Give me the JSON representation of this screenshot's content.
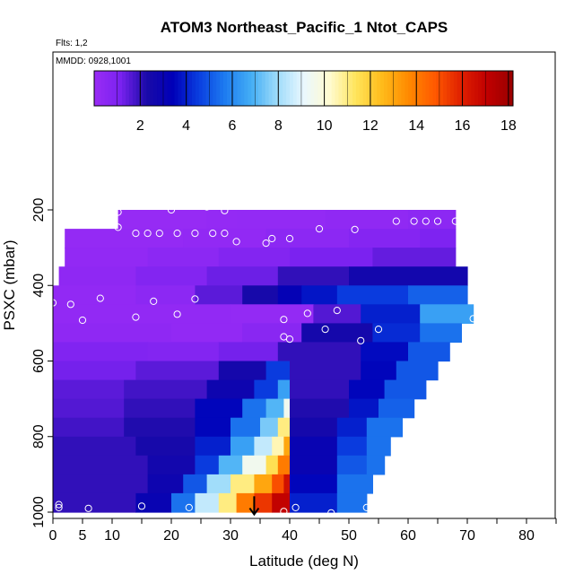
{
  "chart_data": {
    "type": "heatmap",
    "title": "ATOM3 Northeast_Pacific_1 Ntot_CAPS",
    "annotations": [
      "Flts: 1,2",
      "MMDD: 0928,1001"
    ],
    "xlabel": "Latitude (deg N)",
    "ylabel": "PSXC (mbar)",
    "xlim": [
      0,
      85
    ],
    "ylim": [
      1000,
      40
    ],
    "y_reversed": true,
    "grid": false,
    "x_ticks": [
      0,
      5,
      10,
      20,
      30,
      40,
      50,
      60,
      70,
      80
    ],
    "x_tick_labels": [
      "0",
      "5",
      "10",
      "20",
      "30",
      "40",
      "50",
      "60",
      "70",
      "80"
    ],
    "x_minor_ticks": [
      0,
      5,
      10,
      15,
      20,
      25,
      30,
      35,
      40,
      45,
      50,
      55,
      60,
      65,
      70,
      75,
      80,
      85
    ],
    "y_ticks": [
      200,
      400,
      600,
      800,
      1000
    ],
    "y_tick_labels": [
      "200",
      "400",
      "600",
      "800",
      "1000"
    ],
    "colorbar": {
      "orientation": "horizontal",
      "placement": "top",
      "min": 0,
      "max": 18.2,
      "ticks": [
        2,
        4,
        6,
        8,
        10,
        12,
        14,
        16,
        18
      ],
      "tick_labels": [
        "2",
        "4",
        "6",
        "8",
        "10",
        "12",
        "14",
        "16",
        "18"
      ],
      "colors": [
        "#9a2cf5",
        "#7a22f0",
        "#1a0aa8",
        "#0000b8",
        "#0a3ee0",
        "#1e7cf0",
        "#44aef5",
        "#9fdcfa",
        "#eaf8ff",
        "#fffbd0",
        "#ffe45a",
        "#ffbb1a",
        "#ff8a00",
        "#ff5a00",
        "#e02000",
        "#c00000",
        "#990000"
      ]
    },
    "pressure_bands": [
      {
        "p": [
          200,
          250
        ],
        "segments": [
          [
            11,
            26,
            0.15
          ],
          [
            26,
            31,
            0.2
          ],
          [
            31,
            46,
            0.25
          ],
          [
            46,
            60,
            0.35
          ],
          [
            60,
            68,
            0.5
          ]
        ]
      },
      {
        "p": [
          250,
          300
        ],
        "segments": [
          [
            2,
            22,
            0.2
          ],
          [
            22,
            36,
            0.3
          ],
          [
            36,
            50,
            0.5
          ],
          [
            50,
            62,
            0.75
          ],
          [
            62,
            68,
            1.0
          ]
        ]
      },
      {
        "p": [
          300,
          350
        ],
        "segments": [
          [
            2,
            16,
            0.3
          ],
          [
            16,
            28,
            0.5
          ],
          [
            28,
            40,
            0.8
          ],
          [
            40,
            54,
            1.1
          ],
          [
            54,
            68,
            1.4
          ]
        ]
      },
      {
        "p": [
          350,
          400
        ],
        "segments": [
          [
            1,
            14,
            0.4
          ],
          [
            14,
            26,
            0.8
          ],
          [
            26,
            38,
            1.3
          ],
          [
            38,
            50,
            2.0
          ],
          [
            50,
            70,
            2.6
          ]
        ]
      },
      {
        "p": [
          400,
          450
        ],
        "segments": [
          [
            0,
            14,
            0.3
          ],
          [
            14,
            24,
            0.5
          ],
          [
            24,
            32,
            1.5
          ],
          [
            32,
            38,
            2.4
          ],
          [
            38,
            42,
            3.2
          ],
          [
            42,
            48,
            3.8
          ],
          [
            48,
            60,
            4.5
          ],
          [
            60,
            70,
            5.2
          ]
        ]
      },
      {
        "p": [
          450,
          500
        ],
        "segments": [
          [
            0,
            30,
            0.3
          ],
          [
            30,
            44,
            0.25
          ],
          [
            44,
            52,
            1.6
          ],
          [
            52,
            62,
            4.0
          ],
          [
            62,
            71,
            6.5
          ]
        ]
      },
      {
        "p": [
          500,
          550
        ],
        "segments": [
          [
            0,
            20,
            0.4
          ],
          [
            20,
            32,
            0.3
          ],
          [
            32,
            42,
            0.6
          ],
          [
            42,
            54,
            2.5
          ],
          [
            54,
            62,
            4.2
          ],
          [
            62,
            69,
            5.5
          ]
        ]
      },
      {
        "p": [
          550,
          600
        ],
        "segments": [
          [
            0,
            16,
            0.9
          ],
          [
            16,
            28,
            0.8
          ],
          [
            28,
            38,
            1.2
          ],
          [
            38,
            52,
            2.0
          ],
          [
            52,
            60,
            3.6
          ],
          [
            60,
            67,
            5.0
          ]
        ]
      },
      {
        "p": [
          600,
          650
        ],
        "segments": [
          [
            0,
            14,
            1.2
          ],
          [
            14,
            28,
            1.5
          ],
          [
            28,
            36,
            2.5
          ],
          [
            36,
            40,
            4.5
          ],
          [
            40,
            52,
            2.0
          ],
          [
            52,
            58,
            3.5
          ],
          [
            58,
            65,
            5.0
          ]
        ]
      },
      {
        "p": [
          650,
          700
        ],
        "segments": [
          [
            0,
            12,
            1.5
          ],
          [
            12,
            26,
            1.8
          ],
          [
            26,
            34,
            2.8
          ],
          [
            34,
            38,
            4.5
          ],
          [
            38,
            40,
            6.5
          ],
          [
            40,
            50,
            2.0
          ],
          [
            50,
            56,
            3.5
          ],
          [
            56,
            63,
            5.0
          ]
        ]
      },
      {
        "p": [
          700,
          750
        ],
        "segments": [
          [
            0,
            12,
            1.6
          ],
          [
            12,
            24,
            2.0
          ],
          [
            24,
            32,
            3.5
          ],
          [
            32,
            36,
            5.5
          ],
          [
            36,
            39,
            7.0
          ],
          [
            39,
            40,
            9.5
          ],
          [
            40,
            50,
            2.2
          ],
          [
            50,
            55,
            3.8
          ],
          [
            55,
            61,
            5.2
          ]
        ]
      },
      {
        "p": [
          750,
          800
        ],
        "segments": [
          [
            0,
            12,
            1.8
          ],
          [
            12,
            24,
            2.2
          ],
          [
            24,
            30,
            3.5
          ],
          [
            30,
            35,
            5.5
          ],
          [
            35,
            38,
            7.5
          ],
          [
            38,
            40,
            11.0
          ],
          [
            40,
            48,
            2.5
          ],
          [
            48,
            53,
            4.0
          ],
          [
            53,
            59,
            5.5
          ]
        ]
      },
      {
        "p": [
          800,
          850
        ],
        "segments": [
          [
            0,
            14,
            2.0
          ],
          [
            14,
            24,
            2.4
          ],
          [
            24,
            30,
            4.0
          ],
          [
            30,
            34,
            6.5
          ],
          [
            34,
            37,
            8.5
          ],
          [
            37,
            39,
            10.5
          ],
          [
            39,
            40,
            13.0
          ],
          [
            40,
            48,
            3.0
          ],
          [
            48,
            53,
            4.5
          ],
          [
            53,
            57,
            5.5
          ]
        ]
      },
      {
        "p": [
          850,
          900
        ],
        "segments": [
          [
            0,
            16,
            2.0
          ],
          [
            16,
            24,
            2.6
          ],
          [
            24,
            28,
            4.5
          ],
          [
            28,
            32,
            7.0
          ],
          [
            32,
            36,
            9.5
          ],
          [
            36,
            38,
            11.5
          ],
          [
            38,
            40,
            14.0
          ],
          [
            40,
            48,
            3.0
          ],
          [
            48,
            53,
            5.0
          ],
          [
            53,
            56,
            5.5
          ]
        ]
      },
      {
        "p": [
          900,
          950
        ],
        "segments": [
          [
            0,
            16,
            2.0
          ],
          [
            16,
            22,
            2.8
          ],
          [
            22,
            26,
            5.0
          ],
          [
            26,
            30,
            8.0
          ],
          [
            30,
            34,
            11.0
          ],
          [
            34,
            37,
            13.0
          ],
          [
            37,
            39,
            15.0
          ],
          [
            39,
            40,
            16.5
          ],
          [
            40,
            48,
            3.5
          ],
          [
            48,
            54,
            5.5
          ]
        ]
      },
      {
        "p": [
          950,
          1000
        ],
        "segments": [
          [
            0,
            14,
            2.0
          ],
          [
            14,
            20,
            3.0
          ],
          [
            20,
            24,
            5.5
          ],
          [
            24,
            28,
            8.5
          ],
          [
            28,
            31,
            11.0
          ],
          [
            31,
            34,
            14.0
          ],
          [
            34,
            37,
            15.5
          ],
          [
            37,
            40,
            17.0
          ],
          [
            40,
            48,
            4.0
          ],
          [
            48,
            53,
            5.5
          ]
        ]
      }
    ],
    "sample_points": [
      {
        "lat": 11,
        "p": 206
      },
      {
        "lat": 20,
        "p": 200
      },
      {
        "lat": 26,
        "p": 192
      },
      {
        "lat": 29,
        "p": 202
      },
      {
        "lat": 2,
        "p": 222
      },
      {
        "lat": 4,
        "p": 240
      },
      {
        "lat": 6,
        "p": 240
      },
      {
        "lat": 9,
        "p": 240
      },
      {
        "lat": 11,
        "p": 246
      },
      {
        "lat": 14,
        "p": 262
      },
      {
        "lat": 16,
        "p": 262
      },
      {
        "lat": 18,
        "p": 262
      },
      {
        "lat": 21,
        "p": 262
      },
      {
        "lat": 24,
        "p": 262
      },
      {
        "lat": 27,
        "p": 262
      },
      {
        "lat": 29,
        "p": 262
      },
      {
        "lat": 31,
        "p": 284
      },
      {
        "lat": 36,
        "p": 288
      },
      {
        "lat": 37,
        "p": 276
      },
      {
        "lat": 40,
        "p": 276
      },
      {
        "lat": 45,
        "p": 250
      },
      {
        "lat": 51,
        "p": 252
      },
      {
        "lat": 58,
        "p": 230
      },
      {
        "lat": 61,
        "p": 230
      },
      {
        "lat": 63,
        "p": 230
      },
      {
        "lat": 65,
        "p": 230
      },
      {
        "lat": 68,
        "p": 230
      },
      {
        "lat": 0,
        "p": 446
      },
      {
        "lat": 3,
        "p": 450
      },
      {
        "lat": 5,
        "p": 492
      },
      {
        "lat": 8,
        "p": 434
      },
      {
        "lat": 14,
        "p": 484
      },
      {
        "lat": 17,
        "p": 442
      },
      {
        "lat": 21,
        "p": 476
      },
      {
        "lat": 24,
        "p": 436
      },
      {
        "lat": 39,
        "p": 490
      },
      {
        "lat": 43,
        "p": 474
      },
      {
        "lat": 48,
        "p": 466
      },
      {
        "lat": 46,
        "p": 516
      },
      {
        "lat": 52,
        "p": 546
      },
      {
        "lat": 55,
        "p": 516
      },
      {
        "lat": 71,
        "p": 488
      },
      {
        "lat": 39,
        "p": 536
      },
      {
        "lat": 40,
        "p": 542
      },
      {
        "lat": 1,
        "p": 988
      },
      {
        "lat": 1,
        "p": 980
      },
      {
        "lat": 6,
        "p": 990
      },
      {
        "lat": 15,
        "p": 984
      },
      {
        "lat": 23,
        "p": 988
      },
      {
        "lat": 39,
        "p": 998
      },
      {
        "lat": 41,
        "p": 988
      },
      {
        "lat": 47,
        "p": 1002
      },
      {
        "lat": 53,
        "p": 988
      }
    ],
    "arrow": {
      "lat": 34,
      "p_from": 958,
      "p_to": 1006
    }
  }
}
